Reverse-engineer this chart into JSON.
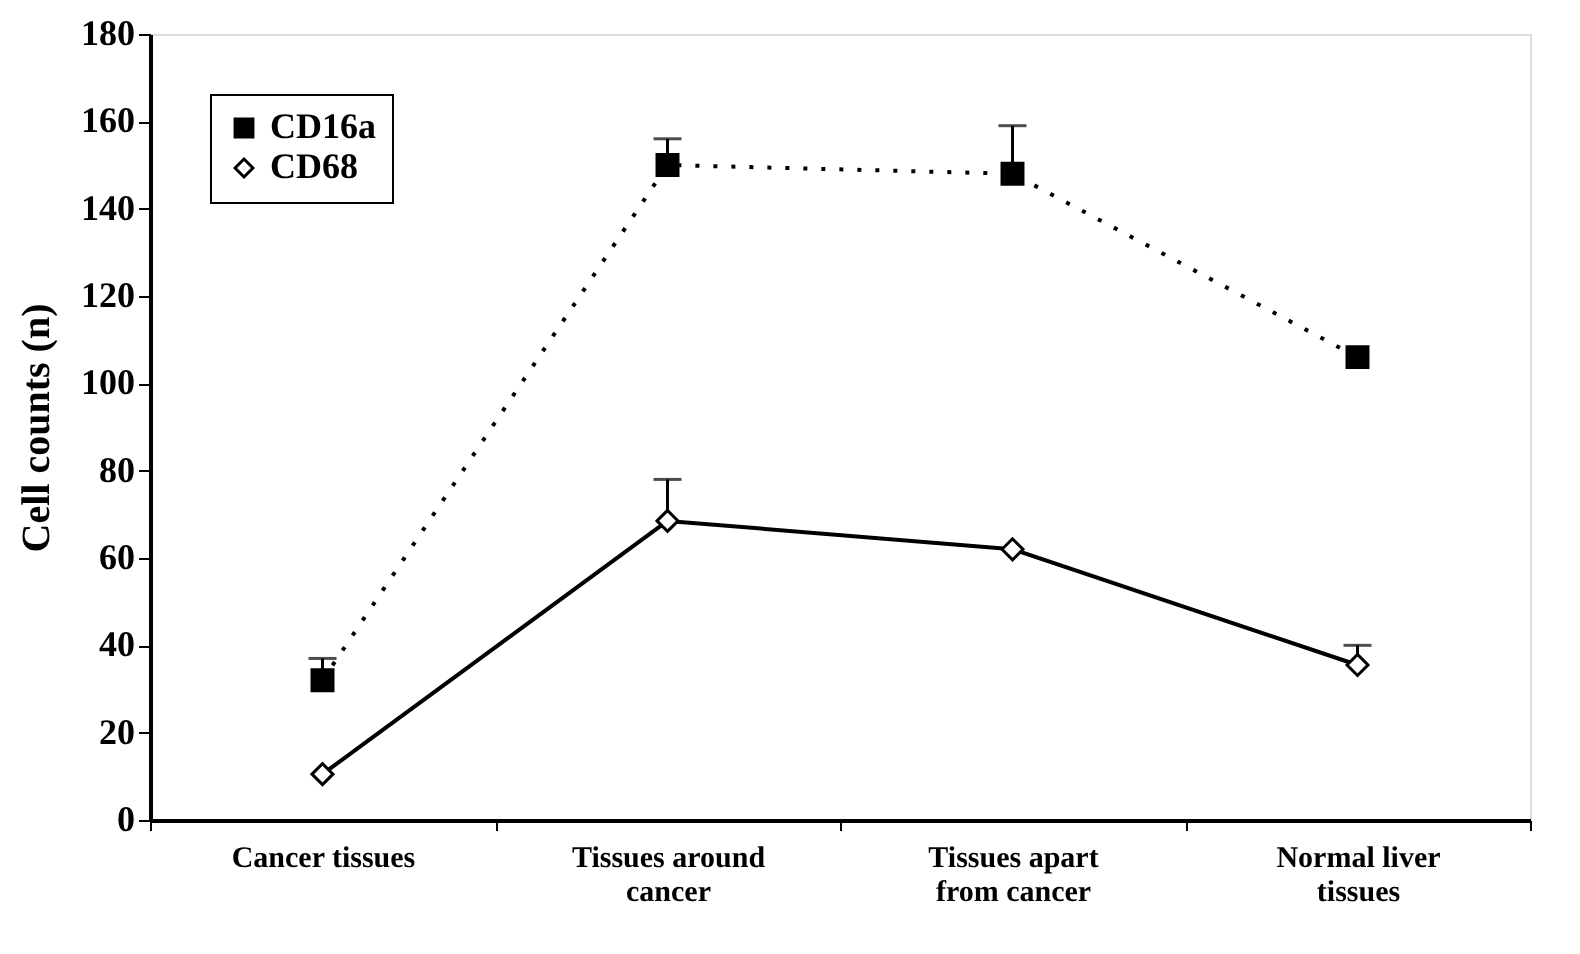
{
  "chart_data": {
    "type": "line",
    "ylabel": "Cell  counts (n)",
    "categories": [
      "Cancer tissues",
      "Tissues around cancer",
      "Tissues apart from cancer",
      "Normal liver tissues"
    ],
    "series": [
      {
        "name": "CD16a",
        "color": "#000000",
        "values": [
          32,
          150,
          148,
          106
        ],
        "errors": [
          [
            32,
            37
          ],
          [
            150,
            156
          ],
          [
            148,
            159
          ],
          null
        ],
        "marker": "square",
        "line_style": "dotted"
      },
      {
        "name": "CD68",
        "color": "#000000",
        "values": [
          10.5,
          68.5,
          62,
          35.5
        ],
        "errors": [
          null,
          [
            68.5,
            78
          ],
          null,
          [
            35.5,
            40
          ]
        ],
        "marker": "diamond",
        "line_style": "solid"
      }
    ],
    "ylim": [
      0,
      180
    ],
    "yticks": [
      0,
      20,
      40,
      60,
      80,
      100,
      120,
      140,
      160,
      180
    ],
    "grid": false,
    "legend": "top left"
  }
}
